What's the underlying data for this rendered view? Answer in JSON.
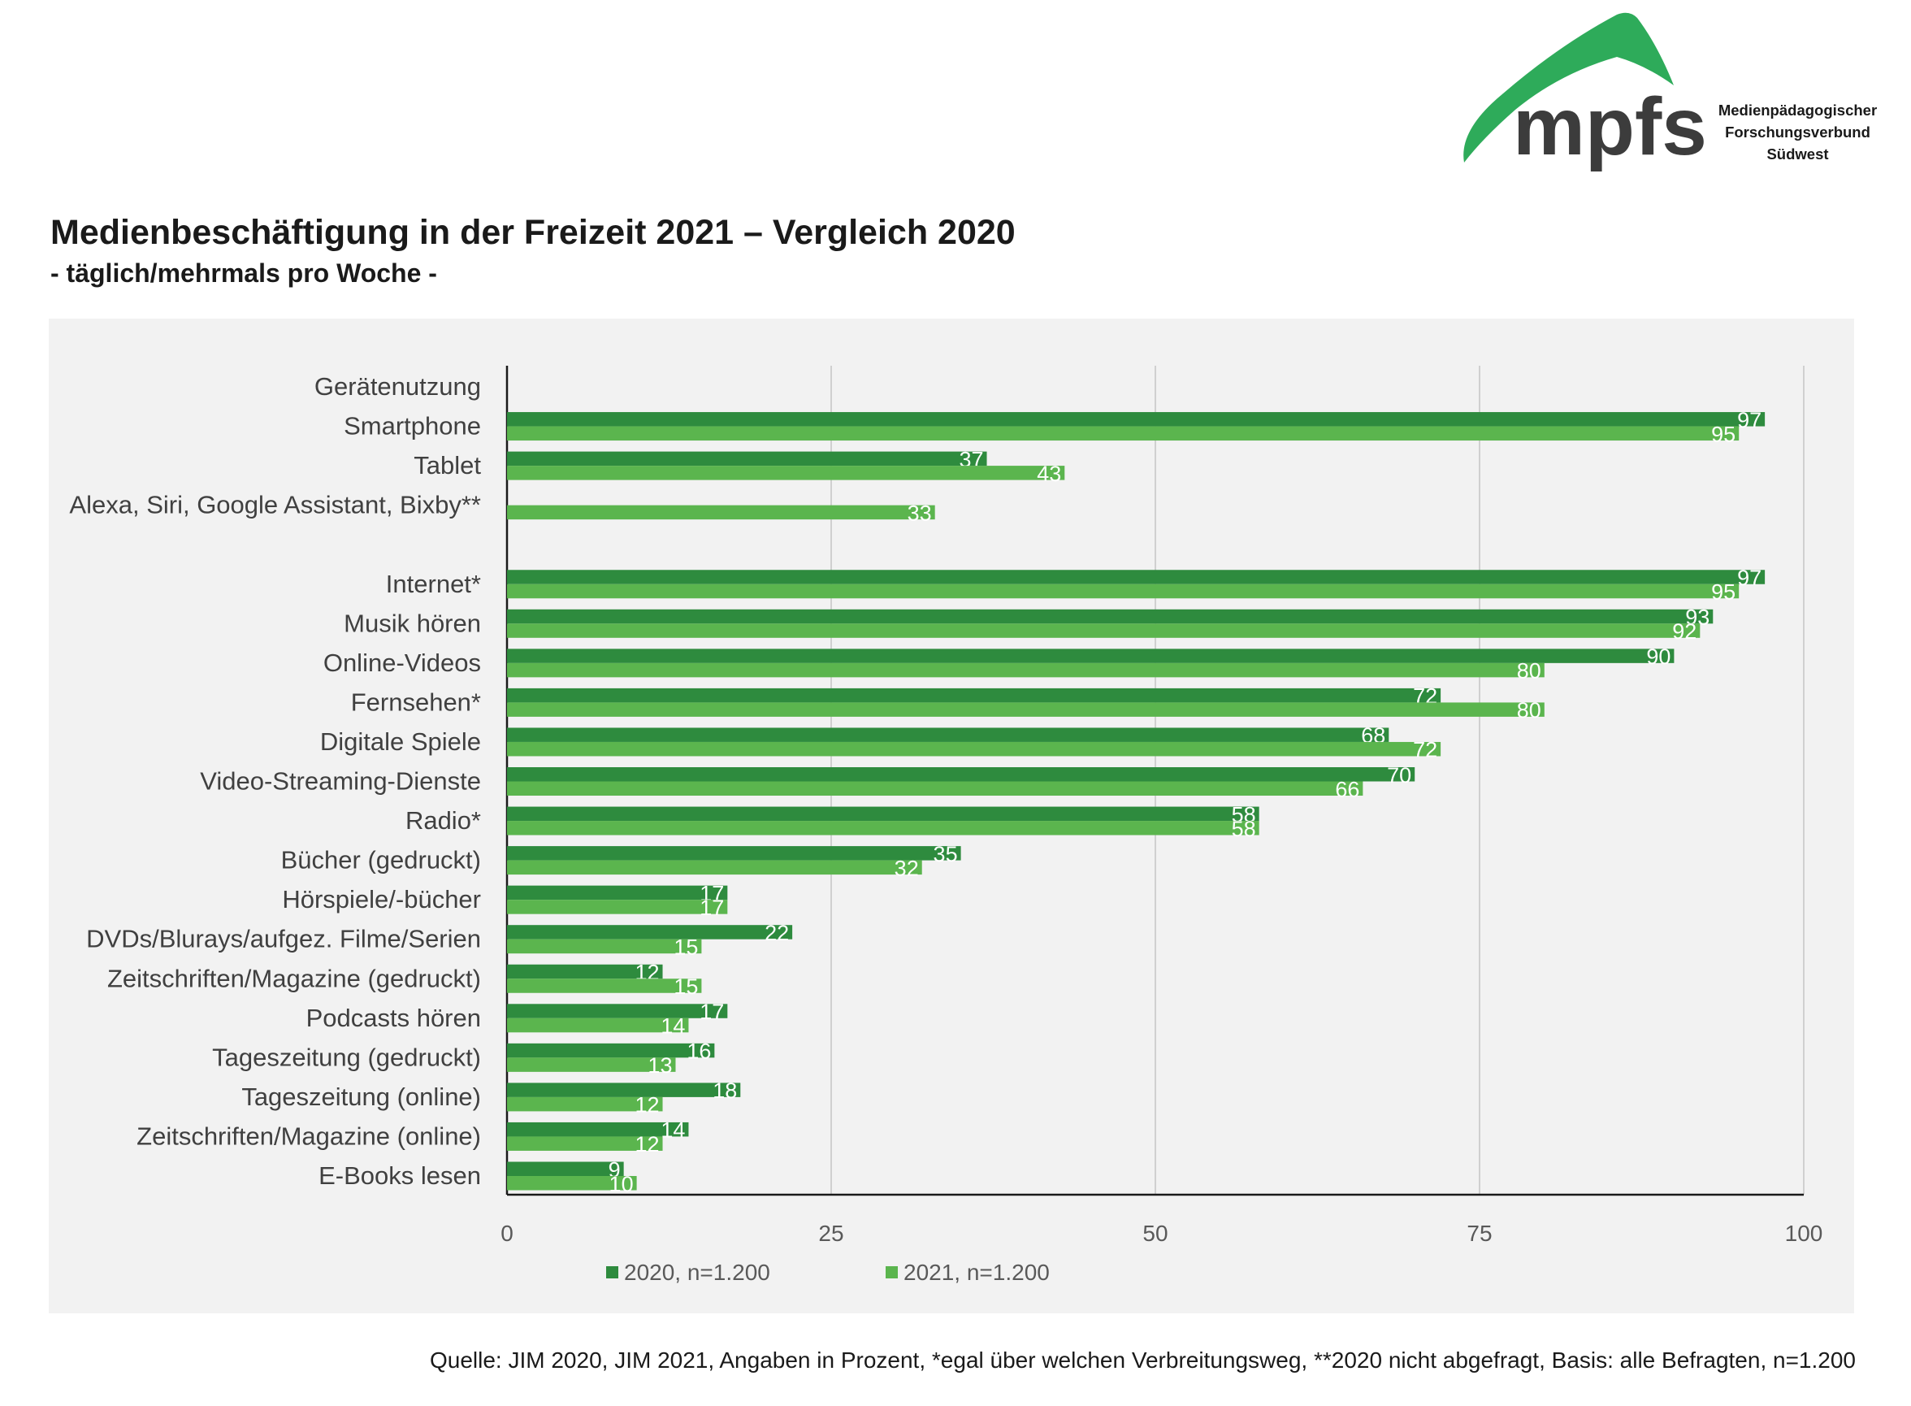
{
  "header": {
    "title": "Medienbeschäftigung in der Freizeit 2021 – Vergleich 2020",
    "subtitle": "- täglich/mehrmals pro Woche -"
  },
  "logo": {
    "wordmark": "mpfs",
    "line1": "Medienpädagogischer",
    "line2": "Forschungsverbund",
    "line3": "Südwest",
    "color": "#2eab5a"
  },
  "footer": {
    "source": "Quelle: JIM 2020, JIM 2021, Angaben in Prozent, *egal über welchen Verbreitungsweg, **2020 nicht abgefragt, Basis: alle  Befragten, n=1.200"
  },
  "chart_data": {
    "type": "bar",
    "orientation": "horizontal",
    "categories": [
      "Gerätenutzung",
      "Smartphone",
      "Tablet",
      "Alexa, Siri, Google Assistant, Bixby**",
      "",
      "Internet*",
      "Musik hören",
      "Online-Videos",
      "Fernsehen*",
      "Digitale Spiele",
      "Video-Streaming-Dienste",
      "Radio*",
      "Bücher (gedruckt)",
      "Hörspiele/-bücher",
      "DVDs/Blurays/aufgez. Filme/Serien",
      "Zeitschriften/Magazine (gedruckt)",
      "Podcasts hören",
      "Tageszeitung (gedruckt)",
      "Tageszeitung (online)",
      "Zeitschriften/Magazine (online)",
      "E-Books lesen"
    ],
    "series": [
      {
        "name": "2020, n=1.200",
        "color": "#2e8b3e",
        "values": [
          null,
          97,
          37,
          null,
          null,
          97,
          93,
          90,
          72,
          68,
          70,
          58,
          35,
          17,
          22,
          12,
          17,
          16,
          18,
          14,
          9
        ]
      },
      {
        "name": "2021, n=1.200",
        "color": "#5bb54e",
        "values": [
          null,
          95,
          43,
          33,
          null,
          95,
          92,
          80,
          80,
          72,
          66,
          58,
          32,
          17,
          15,
          15,
          14,
          13,
          12,
          12,
          10
        ]
      }
    ],
    "xlim": [
      0,
      100
    ],
    "xticks": [
      "0",
      "25",
      "50",
      "75",
      "100"
    ],
    "grid": "vertical",
    "legend_position": "bottom",
    "data_labels": true
  }
}
